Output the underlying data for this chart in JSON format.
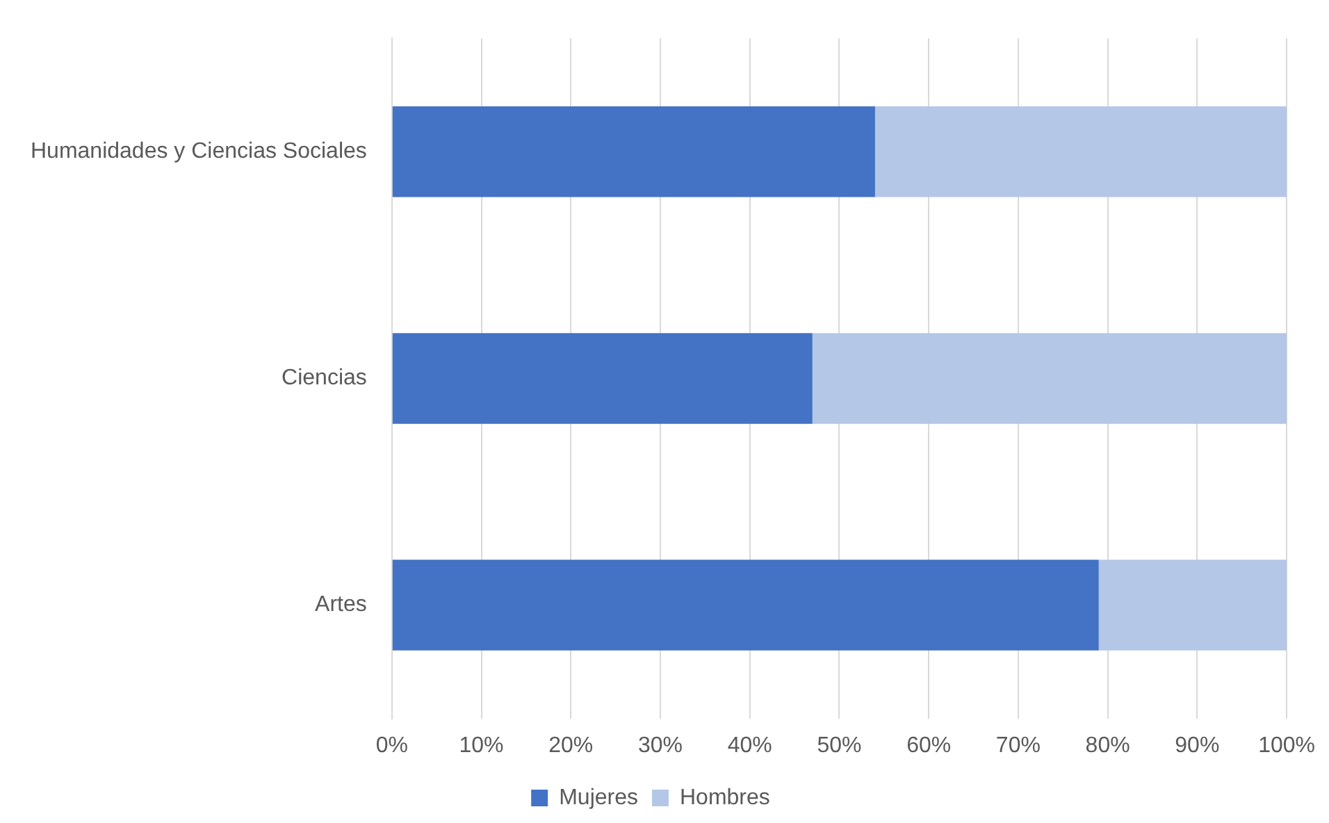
{
  "chart_data": {
    "type": "bar",
    "orientation": "horizontal",
    "stacked": true,
    "categories": [
      "Humanidades y Ciencias Sociales",
      "Ciencias",
      "Artes"
    ],
    "series": [
      {
        "name": "Mujeres",
        "color": "#4472c4",
        "values": [
          54,
          47,
          79
        ]
      },
      {
        "name": "Hombres",
        "color": "#b4c7e7",
        "values": [
          46,
          53,
          21
        ]
      }
    ],
    "xlim": [
      0,
      100
    ],
    "xticks": [
      {
        "value": 0,
        "label": "0%"
      },
      {
        "value": 10,
        "label": "10%"
      },
      {
        "value": 20,
        "label": "20%"
      },
      {
        "value": 30,
        "label": "30%"
      },
      {
        "value": 40,
        "label": "40%"
      },
      {
        "value": 50,
        "label": "50%"
      },
      {
        "value": 60,
        "label": "60%"
      },
      {
        "value": 70,
        "label": "70%"
      },
      {
        "value": 80,
        "label": "80%"
      },
      {
        "value": 90,
        "label": "90%"
      },
      {
        "value": 100,
        "label": "100%"
      }
    ],
    "grid": "x",
    "legend": "bottom"
  }
}
